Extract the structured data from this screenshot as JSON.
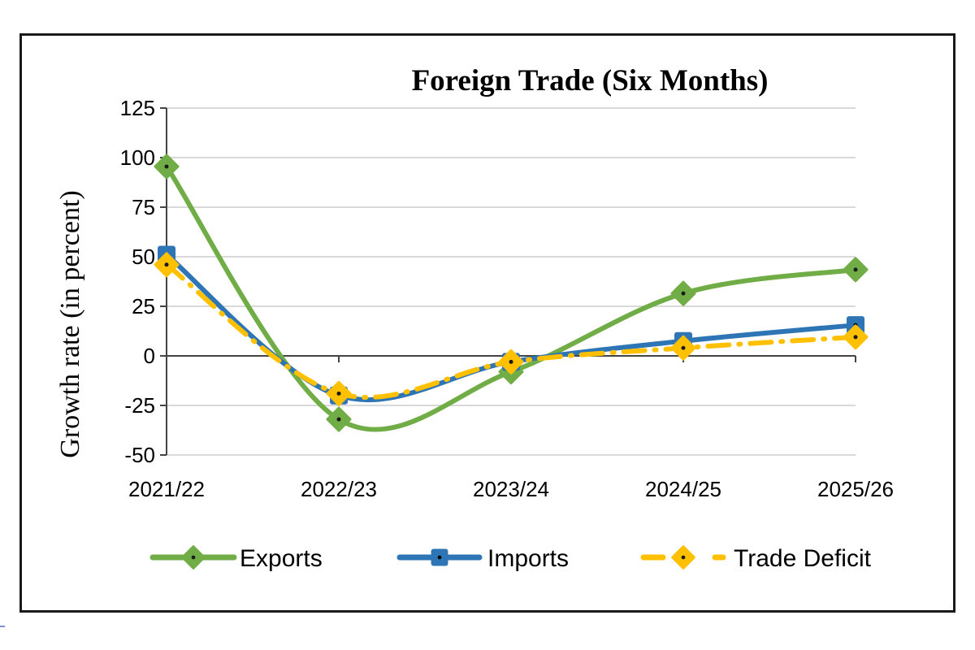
{
  "chart_data": {
    "type": "line",
    "title": "Foreign Trade (Six Months)",
    "xlabel": "",
    "ylabel": "Growth rate (in percent)",
    "categories": [
      "2021/22",
      "2022/23",
      "2023/24",
      "2024/25",
      "2025/26"
    ],
    "series": [
      {
        "name": "Exports",
        "values": [
          95.5,
          -32,
          -8,
          31.5,
          43.5
        ],
        "color": "#70AD47",
        "marker": "diamond",
        "dash": "solid"
      },
      {
        "name": "Imports",
        "values": [
          51,
          -20,
          -3,
          7.5,
          15.5
        ],
        "color": "#2E75B6",
        "marker": "square",
        "dash": "solid"
      },
      {
        "name": "Trade Deficit",
        "values": [
          46,
          -19,
          -3,
          4,
          9.5
        ],
        "color": "#FFC000",
        "marker": "diamond",
        "dash": "dash-dot"
      }
    ],
    "yticks": [
      125,
      100,
      75,
      50,
      25,
      0,
      -25,
      -50
    ],
    "ylim": [
      -50,
      125
    ],
    "grid": true,
    "legend_position": "bottom",
    "smooth": true
  }
}
